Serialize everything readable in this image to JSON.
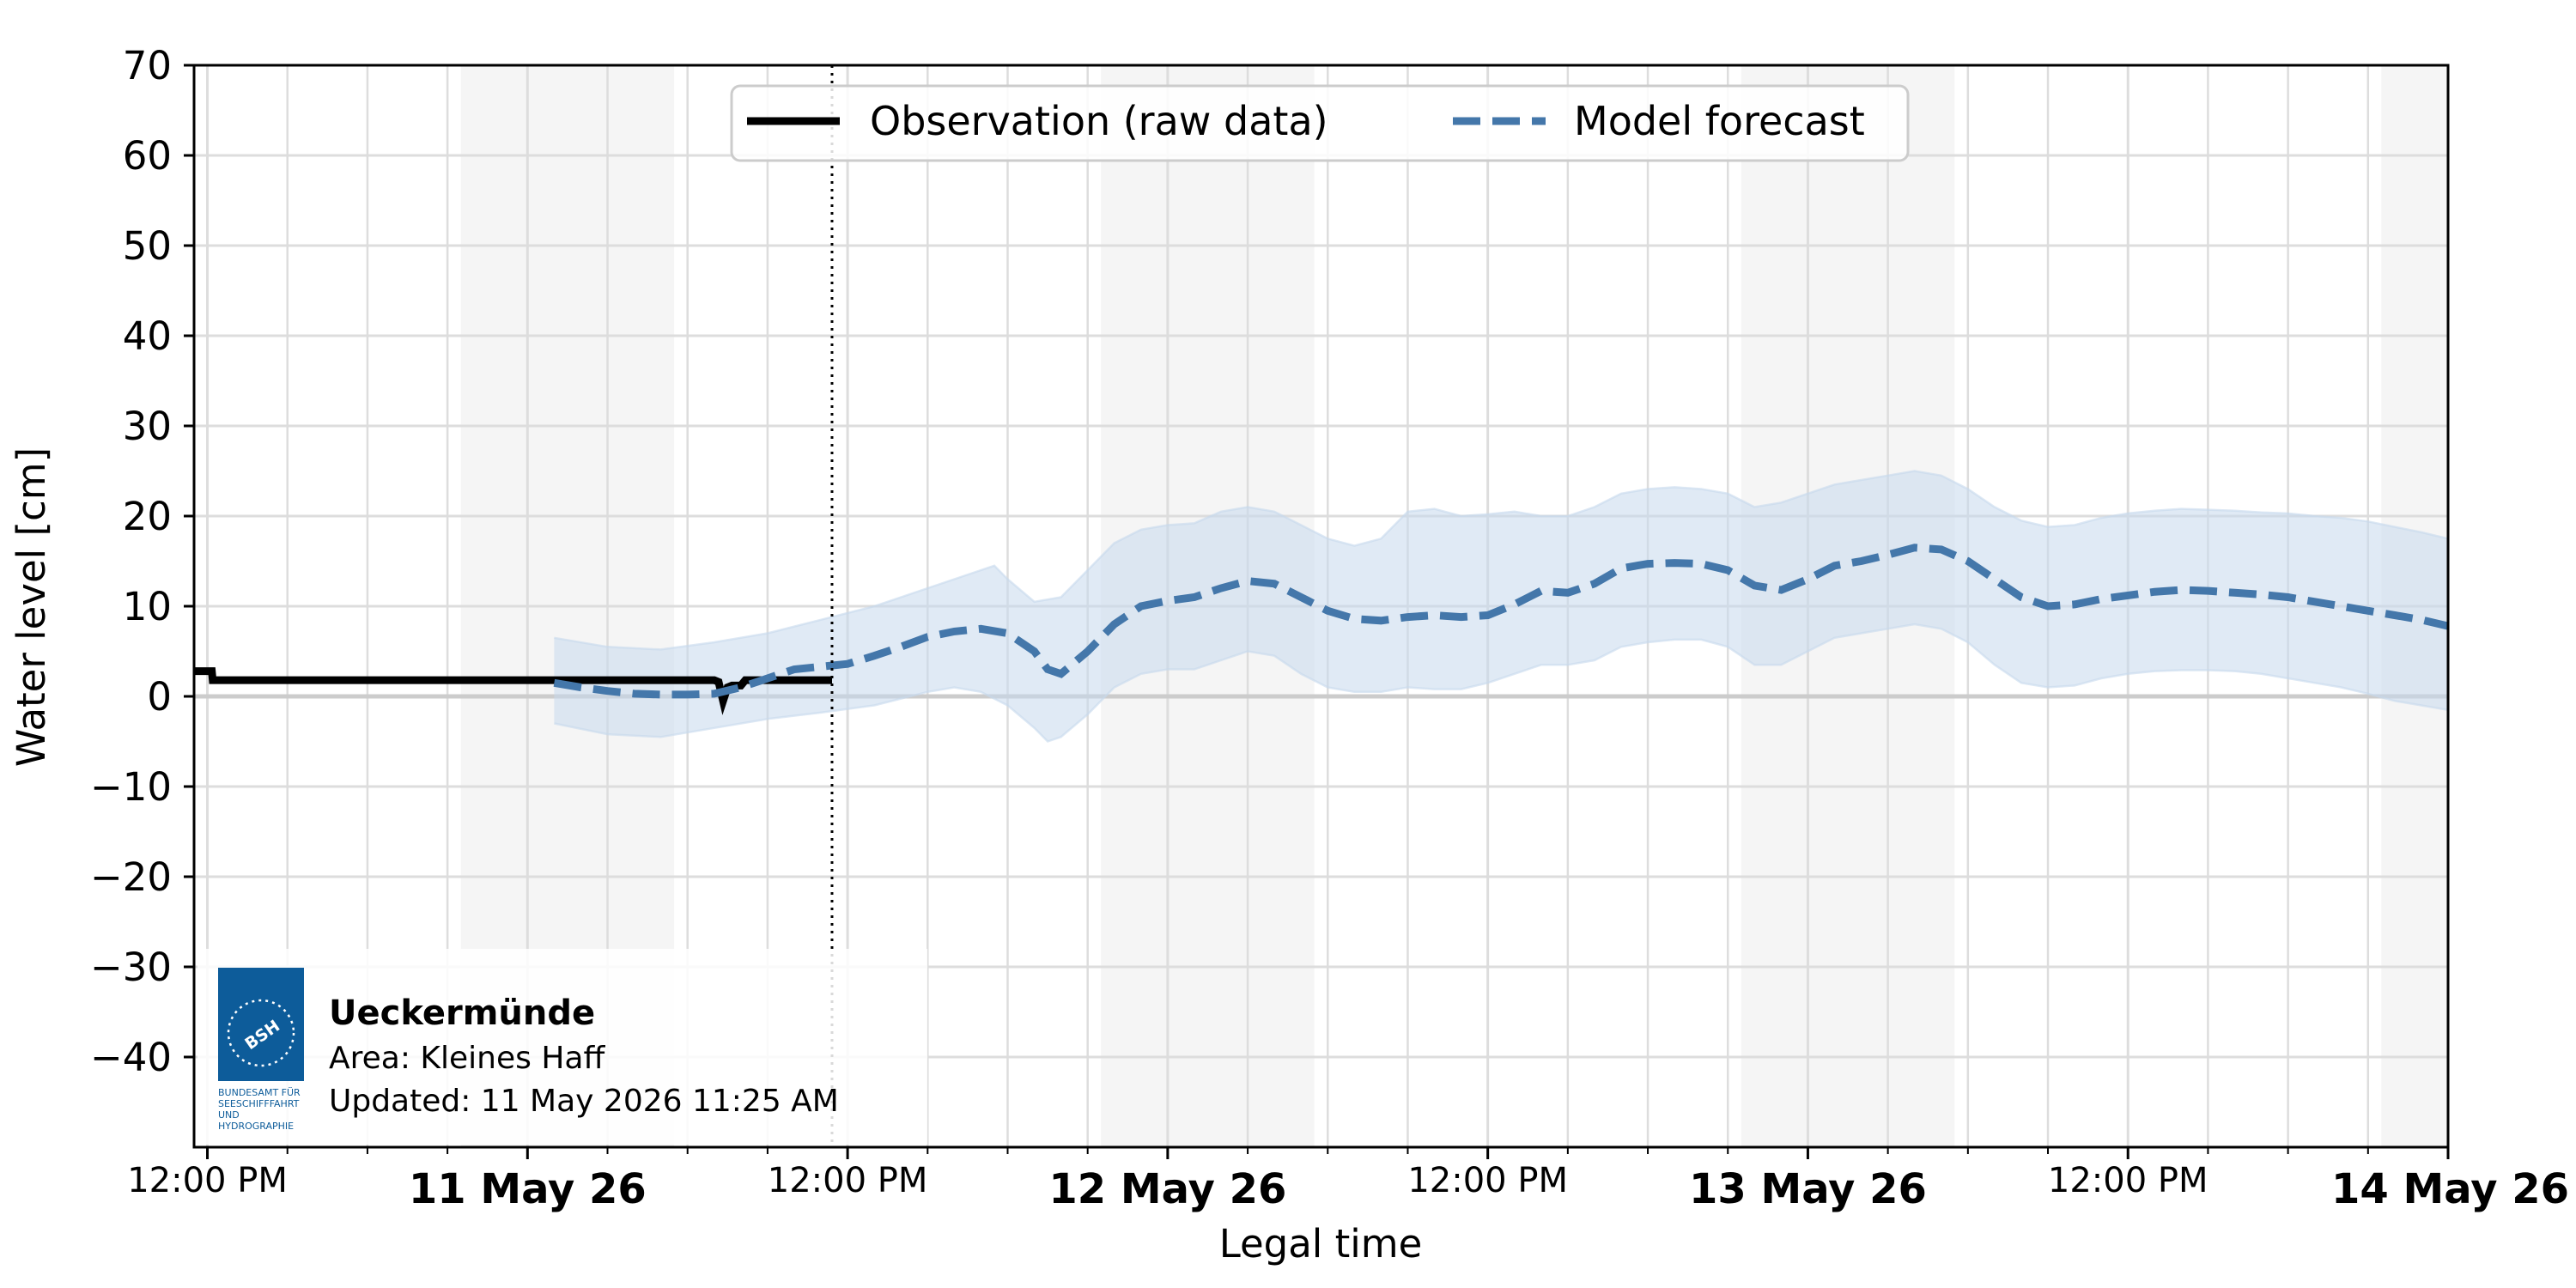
{
  "chart_data": {
    "type": "line",
    "xlabel": "Legal time",
    "ylabel": "Water level [cm]",
    "ylim": [
      -50,
      70
    ],
    "xlim": [
      "2026-05-10 11:30",
      "2026-05-14 00:00"
    ],
    "y_ticks": [
      70,
      60,
      50,
      40,
      30,
      20,
      10,
      0,
      -10,
      -20,
      -30,
      -40
    ],
    "y_tick_labels": [
      "70",
      "60",
      "50",
      "40",
      "30",
      "20",
      "10",
      "0",
      "−10",
      "−20",
      "−30",
      "−40"
    ],
    "x_tick_labels": [
      {
        "t": "2026-05-10 12:00",
        "label": "12:00 PM",
        "bold": false
      },
      {
        "t": "2026-05-11 00:00",
        "label": "11 May 26",
        "bold": true
      },
      {
        "t": "2026-05-11 12:00",
        "label": "12:00 PM",
        "bold": false
      },
      {
        "t": "2026-05-12 00:00",
        "label": "12 May 26",
        "bold": true
      },
      {
        "t": "2026-05-12 12:00",
        "label": "12:00 PM",
        "bold": false
      },
      {
        "t": "2026-05-13 00:00",
        "label": "13 May 26",
        "bold": true
      },
      {
        "t": "2026-05-13 12:00",
        "label": "12:00 PM",
        "bold": false
      },
      {
        "t": "2026-05-14 00:00",
        "label": "14 May 26",
        "bold": true
      }
    ],
    "minor_gridlines": [
      "2026-05-10 15:00",
      "2026-05-10 18:00",
      "2026-05-10 21:00",
      "2026-05-11 03:00",
      "2026-05-11 06:00",
      "2026-05-11 09:00",
      "2026-05-11 15:00",
      "2026-05-11 18:00",
      "2026-05-11 21:00",
      "2026-05-12 03:00",
      "2026-05-12 06:00",
      "2026-05-12 09:00",
      "2026-05-12 15:00",
      "2026-05-12 18:00",
      "2026-05-12 21:00",
      "2026-05-13 03:00",
      "2026-05-13 06:00",
      "2026-05-13 09:00",
      "2026-05-13 15:00",
      "2026-05-13 18:00",
      "2026-05-13 21:00"
    ],
    "night_bands": [
      [
        "2026-05-10 21:30",
        "2026-05-11 05:30"
      ],
      [
        "2026-05-11 21:30",
        "2026-05-12 05:30"
      ],
      [
        "2026-05-12 21:30",
        "2026-05-13 05:30"
      ],
      [
        "2026-05-13 21:30",
        "2026-05-14 00:00"
      ]
    ],
    "now_marker": "2026-05-11 11:25",
    "grid": true,
    "legend_position": "top-center",
    "series": [
      {
        "name": "Observation (raw data)",
        "color": "#000000",
        "style": "solid",
        "points": [
          [
            "2026-05-10 11:30",
            2.8
          ],
          [
            "2026-05-10 12:10",
            2.8
          ],
          [
            "2026-05-10 12:12",
            1.8
          ],
          [
            "2026-05-11 07:00",
            1.8
          ],
          [
            "2026-05-11 07:10",
            1.6
          ],
          [
            "2026-05-11 07:20",
            -0.5
          ],
          [
            "2026-05-11 07:30",
            1.0
          ],
          [
            "2026-05-11 07:40",
            1.2
          ],
          [
            "2026-05-11 08:00",
            1.2
          ],
          [
            "2026-05-11 08:10",
            1.8
          ],
          [
            "2026-05-11 11:25",
            1.8
          ]
        ]
      },
      {
        "name": "Model forecast",
        "color": "#4477aa",
        "style": "dashed",
        "band_color": "#c6d9ec",
        "points": [
          [
            "2026-05-11 01:00",
            1.5
          ],
          [
            "2026-05-11 02:00",
            1.0
          ],
          [
            "2026-05-11 03:00",
            0.6
          ],
          [
            "2026-05-11 04:00",
            0.3
          ],
          [
            "2026-05-11 05:00",
            0.2
          ],
          [
            "2026-05-11 06:00",
            0.2
          ],
          [
            "2026-05-11 07:00",
            0.3
          ],
          [
            "2026-05-11 08:00",
            1.0
          ],
          [
            "2026-05-11 09:00",
            2.0
          ],
          [
            "2026-05-11 10:00",
            3.0
          ],
          [
            "2026-05-11 11:00",
            3.3
          ],
          [
            "2026-05-11 12:00",
            3.6
          ],
          [
            "2026-05-11 13:00",
            4.5
          ],
          [
            "2026-05-11 14:00",
            5.5
          ],
          [
            "2026-05-11 15:00",
            6.6
          ],
          [
            "2026-05-11 16:00",
            7.2
          ],
          [
            "2026-05-11 17:00",
            7.5
          ],
          [
            "2026-05-11 18:00",
            7.0
          ],
          [
            "2026-05-11 19:00",
            5.0
          ],
          [
            "2026-05-11 19:30",
            3.0
          ],
          [
            "2026-05-11 20:00",
            2.5
          ],
          [
            "2026-05-11 21:00",
            5.0
          ],
          [
            "2026-05-11 22:00",
            8.0
          ],
          [
            "2026-05-11 23:00",
            10.0
          ],
          [
            "2026-05-12 00:00",
            10.6
          ],
          [
            "2026-05-12 01:00",
            11.0
          ],
          [
            "2026-05-12 02:00",
            12.0
          ],
          [
            "2026-05-12 03:00",
            12.8
          ],
          [
            "2026-05-12 04:00",
            12.5
          ],
          [
            "2026-05-12 05:00",
            11.0
          ],
          [
            "2026-05-12 06:00",
            9.5
          ],
          [
            "2026-05-12 07:00",
            8.6
          ],
          [
            "2026-05-12 08:00",
            8.4
          ],
          [
            "2026-05-12 09:00",
            8.8
          ],
          [
            "2026-05-12 10:00",
            9.0
          ],
          [
            "2026-05-12 11:00",
            8.8
          ],
          [
            "2026-05-12 12:00",
            9.0
          ],
          [
            "2026-05-12 13:00",
            10.2
          ],
          [
            "2026-05-12 14:00",
            11.7
          ],
          [
            "2026-05-12 15:00",
            11.5
          ],
          [
            "2026-05-12 16:00",
            12.5
          ],
          [
            "2026-05-12 17:00",
            14.2
          ],
          [
            "2026-05-12 18:00",
            14.7
          ],
          [
            "2026-05-12 19:00",
            14.8
          ],
          [
            "2026-05-12 20:00",
            14.7
          ],
          [
            "2026-05-12 21:00",
            14.0
          ],
          [
            "2026-05-12 22:00",
            12.3
          ],
          [
            "2026-05-12 23:00",
            11.8
          ],
          [
            "2026-05-13 00:00",
            13.0
          ],
          [
            "2026-05-13 01:00",
            14.5
          ],
          [
            "2026-05-13 02:00",
            15.0
          ],
          [
            "2026-05-13 03:00",
            15.7
          ],
          [
            "2026-05-13 04:00",
            16.5
          ],
          [
            "2026-05-13 05:00",
            16.3
          ],
          [
            "2026-05-13 06:00",
            15.0
          ],
          [
            "2026-05-13 07:00",
            13.0
          ],
          [
            "2026-05-13 08:00",
            11.0
          ],
          [
            "2026-05-13 09:00",
            10.0
          ],
          [
            "2026-05-13 10:00",
            10.2
          ],
          [
            "2026-05-13 11:00",
            10.8
          ],
          [
            "2026-05-13 12:00",
            11.2
          ],
          [
            "2026-05-13 13:00",
            11.6
          ],
          [
            "2026-05-13 14:00",
            11.8
          ],
          [
            "2026-05-13 15:00",
            11.7
          ],
          [
            "2026-05-13 16:00",
            11.5
          ],
          [
            "2026-05-13 17:00",
            11.3
          ],
          [
            "2026-05-13 18:00",
            11.0
          ],
          [
            "2026-05-13 19:00",
            10.5
          ],
          [
            "2026-05-13 20:00",
            10.0
          ],
          [
            "2026-05-13 21:00",
            9.5
          ],
          [
            "2026-05-13 22:00",
            9.0
          ],
          [
            "2026-05-13 23:00",
            8.5
          ],
          [
            "2026-05-14 00:00",
            7.8
          ]
        ],
        "upper": [
          [
            "2026-05-11 01:00",
            6.5
          ],
          [
            "2026-05-11 03:00",
            5.5
          ],
          [
            "2026-05-11 05:00",
            5.2
          ],
          [
            "2026-05-11 07:00",
            6.0
          ],
          [
            "2026-05-11 09:00",
            7.0
          ],
          [
            "2026-05-11 11:00",
            8.5
          ],
          [
            "2026-05-11 13:00",
            10.0
          ],
          [
            "2026-05-11 15:00",
            12.0
          ],
          [
            "2026-05-11 16:00",
            13.0
          ],
          [
            "2026-05-11 17:00",
            14.0
          ],
          [
            "2026-05-11 17:30",
            14.5
          ],
          [
            "2026-05-11 18:00",
            13.0
          ],
          [
            "2026-05-11 19:00",
            10.5
          ],
          [
            "2026-05-11 20:00",
            11.0
          ],
          [
            "2026-05-11 21:00",
            14.0
          ],
          [
            "2026-05-11 22:00",
            17.0
          ],
          [
            "2026-05-11 23:00",
            18.5
          ],
          [
            "2026-05-12 00:00",
            19.0
          ],
          [
            "2026-05-12 01:00",
            19.2
          ],
          [
            "2026-05-12 02:00",
            20.5
          ],
          [
            "2026-05-12 03:00",
            21.0
          ],
          [
            "2026-05-12 04:00",
            20.5
          ],
          [
            "2026-05-12 05:00",
            19.0
          ],
          [
            "2026-05-12 06:00",
            17.5
          ],
          [
            "2026-05-12 07:00",
            16.7
          ],
          [
            "2026-05-12 08:00",
            17.5
          ],
          [
            "2026-05-12 09:00",
            20.5
          ],
          [
            "2026-05-12 10:00",
            20.8
          ],
          [
            "2026-05-12 11:00",
            20.0
          ],
          [
            "2026-05-12 12:00",
            20.2
          ],
          [
            "2026-05-12 13:00",
            20.5
          ],
          [
            "2026-05-12 14:00",
            20.0
          ],
          [
            "2026-05-12 15:00",
            20.0
          ],
          [
            "2026-05-12 16:00",
            21.0
          ],
          [
            "2026-05-12 17:00",
            22.5
          ],
          [
            "2026-05-12 18:00",
            23.0
          ],
          [
            "2026-05-12 19:00",
            23.2
          ],
          [
            "2026-05-12 20:00",
            23.0
          ],
          [
            "2026-05-12 21:00",
            22.5
          ],
          [
            "2026-05-12 22:00",
            21.0
          ],
          [
            "2026-05-12 23:00",
            21.5
          ],
          [
            "2026-05-13 00:00",
            22.5
          ],
          [
            "2026-05-13 01:00",
            23.5
          ],
          [
            "2026-05-13 02:00",
            24.0
          ],
          [
            "2026-05-13 03:00",
            24.5
          ],
          [
            "2026-05-13 04:00",
            25.0
          ],
          [
            "2026-05-13 05:00",
            24.5
          ],
          [
            "2026-05-13 06:00",
            23.0
          ],
          [
            "2026-05-13 07:00",
            21.0
          ],
          [
            "2026-05-13 08:00",
            19.5
          ],
          [
            "2026-05-13 09:00",
            18.8
          ],
          [
            "2026-05-13 10:00",
            19.0
          ],
          [
            "2026-05-13 11:00",
            19.8
          ],
          [
            "2026-05-13 12:00",
            20.3
          ],
          [
            "2026-05-13 13:00",
            20.6
          ],
          [
            "2026-05-13 14:00",
            20.8
          ],
          [
            "2026-05-13 15:00",
            20.7
          ],
          [
            "2026-05-13 16:00",
            20.6
          ],
          [
            "2026-05-13 17:00",
            20.4
          ],
          [
            "2026-05-13 18:00",
            20.3
          ],
          [
            "2026-05-13 19:00",
            20.0
          ],
          [
            "2026-05-13 20:00",
            19.8
          ],
          [
            "2026-05-13 21:00",
            19.4
          ],
          [
            "2026-05-13 22:00",
            18.8
          ],
          [
            "2026-05-13 23:00",
            18.2
          ],
          [
            "2026-05-14 00:00",
            17.5
          ]
        ],
        "lower": [
          [
            "2026-05-11 01:00",
            -3.0
          ],
          [
            "2026-05-11 03:00",
            -4.2
          ],
          [
            "2026-05-11 05:00",
            -4.5
          ],
          [
            "2026-05-11 07:00",
            -3.5
          ],
          [
            "2026-05-11 09:00",
            -2.5
          ],
          [
            "2026-05-11 11:00",
            -1.8
          ],
          [
            "2026-05-11 13:00",
            -1.0
          ],
          [
            "2026-05-11 15:00",
            0.5
          ],
          [
            "2026-05-11 16:00",
            1.0
          ],
          [
            "2026-05-11 17:00",
            0.5
          ],
          [
            "2026-05-11 18:00",
            -1.0
          ],
          [
            "2026-05-11 19:00",
            -3.5
          ],
          [
            "2026-05-11 19:30",
            -5.0
          ],
          [
            "2026-05-11 20:00",
            -4.5
          ],
          [
            "2026-05-11 21:00",
            -2.0
          ],
          [
            "2026-05-11 22:00",
            1.0
          ],
          [
            "2026-05-11 23:00",
            2.5
          ],
          [
            "2026-05-12 00:00",
            3.0
          ],
          [
            "2026-05-12 01:00",
            3.0
          ],
          [
            "2026-05-12 02:00",
            4.0
          ],
          [
            "2026-05-12 03:00",
            5.0
          ],
          [
            "2026-05-12 04:00",
            4.5
          ],
          [
            "2026-05-12 05:00",
            2.5
          ],
          [
            "2026-05-12 06:00",
            1.0
          ],
          [
            "2026-05-12 07:00",
            0.5
          ],
          [
            "2026-05-12 08:00",
            0.5
          ],
          [
            "2026-05-12 09:00",
            1.0
          ],
          [
            "2026-05-12 10:00",
            0.8
          ],
          [
            "2026-05-12 11:00",
            0.8
          ],
          [
            "2026-05-12 12:00",
            1.5
          ],
          [
            "2026-05-12 13:00",
            2.5
          ],
          [
            "2026-05-12 14:00",
            3.5
          ],
          [
            "2026-05-12 15:00",
            3.5
          ],
          [
            "2026-05-12 16:00",
            4.0
          ],
          [
            "2026-05-12 17:00",
            5.5
          ],
          [
            "2026-05-12 18:00",
            6.0
          ],
          [
            "2026-05-12 19:00",
            6.3
          ],
          [
            "2026-05-12 20:00",
            6.3
          ],
          [
            "2026-05-12 21:00",
            5.5
          ],
          [
            "2026-05-12 22:00",
            3.5
          ],
          [
            "2026-05-12 23:00",
            3.5
          ],
          [
            "2026-05-13 00:00",
            5.0
          ],
          [
            "2026-05-13 01:00",
            6.5
          ],
          [
            "2026-05-13 02:00",
            7.0
          ],
          [
            "2026-05-13 03:00",
            7.5
          ],
          [
            "2026-05-13 04:00",
            8.0
          ],
          [
            "2026-05-13 05:00",
            7.5
          ],
          [
            "2026-05-13 06:00",
            6.0
          ],
          [
            "2026-05-13 07:00",
            3.5
          ],
          [
            "2026-05-13 08:00",
            1.5
          ],
          [
            "2026-05-13 09:00",
            1.0
          ],
          [
            "2026-05-13 10:00",
            1.2
          ],
          [
            "2026-05-13 11:00",
            2.0
          ],
          [
            "2026-05-13 12:00",
            2.5
          ],
          [
            "2026-05-13 13:00",
            2.8
          ],
          [
            "2026-05-13 14:00",
            2.9
          ],
          [
            "2026-05-13 15:00",
            2.9
          ],
          [
            "2026-05-13 16:00",
            2.8
          ],
          [
            "2026-05-13 17:00",
            2.5
          ],
          [
            "2026-05-13 18:00",
            2.0
          ],
          [
            "2026-05-13 19:00",
            1.5
          ],
          [
            "2026-05-13 20:00",
            1.0
          ],
          [
            "2026-05-13 21:00",
            0.3
          ],
          [
            "2026-05-13 22:00",
            -0.5
          ],
          [
            "2026-05-13 23:00",
            -1.0
          ],
          [
            "2026-05-14 00:00",
            -1.5
          ]
        ]
      }
    ]
  },
  "info_box": {
    "station": "Ueckermünde",
    "area": "Area: Kleines Haff",
    "updated": "Updated: 11 May 2026 11:25 AM",
    "logo_text": "BSH",
    "logo_caption": [
      "BUNDESAMT FÜR",
      "SEESCHIFFFAHRT",
      "UND",
      "HYDROGRAPHIE"
    ]
  },
  "colors": {
    "forecast": "#4477aa",
    "band": "#c6d9ec",
    "logo": "#0d5c9a",
    "night": "#f5f5f5",
    "grid": "#dddddd"
  }
}
